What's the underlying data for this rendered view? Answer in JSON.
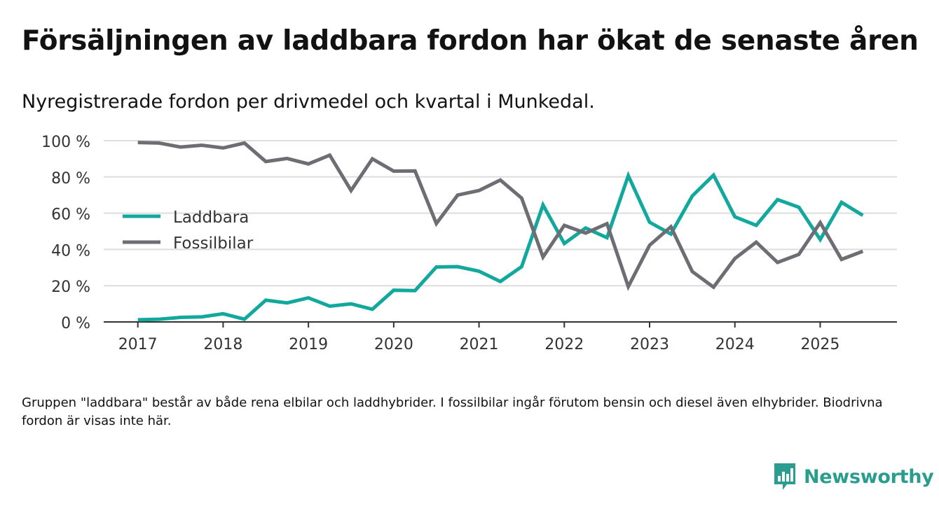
{
  "header": {
    "title": "Försäljningen av laddbara fordon har ökat de senaste åren",
    "subtitle": "Nyregistrerade fordon per drivmedel och kvartal i Munkedal."
  },
  "footnote": "Gruppen \"laddbara\" består av både rena elbilar och laddhybrider. I fossilbilar ingår förutom bensin och diesel även elhybrider. Biodrivna fordon är visas inte här.",
  "brand": {
    "name": "Newsworthy",
    "icon": "newsworthy-logo-icon"
  },
  "colors": {
    "laddbara": "#13a89e",
    "fossil": "#6d6d73",
    "grid": "#dddddd",
    "axis": "#333333",
    "brand": "#2a9d8f"
  },
  "chart_data": {
    "type": "line",
    "title": "Försäljningen av laddbara fordon har ökat de senaste åren",
    "xlabel": "",
    "ylabel": "",
    "x_start": 2017,
    "x_step": 0.25,
    "xlim": [
      2016.6,
      2025.9
    ],
    "ylim": [
      0,
      100
    ],
    "y_ticks": [
      0,
      20,
      40,
      60,
      80,
      100
    ],
    "y_tick_labels": [
      "0 %",
      "20 %",
      "40 %",
      "60 %",
      "80 %",
      "100 %"
    ],
    "x_ticks": [
      2017,
      2018,
      2019,
      2020,
      2021,
      2022,
      2023,
      2024,
      2025
    ],
    "x_tick_labels": [
      "2017",
      "2018",
      "2019",
      "2020",
      "2021",
      "2022",
      "2023",
      "2024",
      "2025"
    ],
    "grid": true,
    "legend_position": "left",
    "series": [
      {
        "name": "Laddbara",
        "color": "#13a89e",
        "values": [
          1.2,
          1.5,
          2.5,
          2.8,
          4.5,
          1.5,
          12,
          10.5,
          13.3,
          8.7,
          10,
          7,
          17.5,
          17.3,
          30.3,
          30.5,
          28,
          22.3,
          30.5,
          64.5,
          43.3,
          51.8,
          46.5,
          80.7,
          55,
          48.5,
          69.5,
          81,
          58,
          53.3,
          67.5,
          63.3,
          45.5,
          66,
          58.8
        ]
      },
      {
        "name": "Fossilbilar",
        "color": "#6d6d73",
        "values": [
          99,
          98.7,
          96.5,
          97.5,
          96,
          98.7,
          88.5,
          90.2,
          87.2,
          92,
          72.5,
          90,
          83.2,
          83.3,
          54.3,
          70,
          72.5,
          78.3,
          68.3,
          35.8,
          53.3,
          49,
          54.2,
          19.5,
          42.3,
          52.5,
          27.8,
          19.2,
          35,
          44,
          32.8,
          37.3,
          54.8,
          34.5,
          39
        ]
      }
    ]
  }
}
